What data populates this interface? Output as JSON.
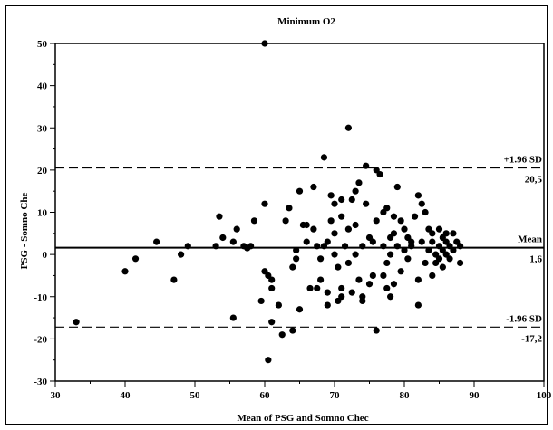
{
  "chart_data": {
    "type": "scatter",
    "title": "Minimum O2",
    "xlabel": "Mean of PSG and Somno Chec",
    "ylabel": "PSG - Somno Che",
    "xlim": [
      30,
      100
    ],
    "ylim": [
      -30,
      50
    ],
    "x_ticks": [
      "30",
      "40",
      "50",
      "60",
      "70",
      "80",
      "90",
      "100"
    ],
    "y_ticks": [
      "-30",
      "-20",
      "-10",
      "0",
      "10",
      "20",
      "30",
      "40",
      "50"
    ],
    "grid": false,
    "reference_lines": [
      {
        "name": "upper_loa",
        "value": 20.5,
        "style": "dashed",
        "label_top": "+1.96 SD",
        "label_bottom": "20,5"
      },
      {
        "name": "mean",
        "value": 1.6,
        "style": "solid",
        "label_top": "Mean",
        "label_bottom": "1,6"
      },
      {
        "name": "lower_loa",
        "value": -17.2,
        "style": "dashed",
        "label_top": "-1.96 SD",
        "label_bottom": "-17,2"
      }
    ],
    "points": [
      [
        33,
        -16
      ],
      [
        40,
        -4
      ],
      [
        41.5,
        -1
      ],
      [
        44.5,
        3
      ],
      [
        47,
        -6
      ],
      [
        48,
        0
      ],
      [
        49,
        2
      ],
      [
        53,
        2
      ],
      [
        53.5,
        9
      ],
      [
        54,
        4
      ],
      [
        55.5,
        -15
      ],
      [
        55.5,
        3
      ],
      [
        56,
        6
      ],
      [
        57,
        2
      ],
      [
        57.5,
        1.5
      ],
      [
        58,
        2
      ],
      [
        58.5,
        8
      ],
      [
        59.5,
        -11
      ],
      [
        60,
        12
      ],
      [
        60,
        50
      ],
      [
        60,
        -4
      ],
      [
        60.5,
        -5
      ],
      [
        60.5,
        -25
      ],
      [
        61,
        -8
      ],
      [
        61,
        -6
      ],
      [
        61,
        -16
      ],
      [
        62,
        -12
      ],
      [
        62.5,
        -19
      ],
      [
        63,
        8
      ],
      [
        63.5,
        11
      ],
      [
        64,
        -3
      ],
      [
        64,
        -18
      ],
      [
        64.5,
        -1
      ],
      [
        64.5,
        1
      ],
      [
        65,
        15
      ],
      [
        65,
        -13
      ],
      [
        65.5,
        7
      ],
      [
        66,
        3
      ],
      [
        66,
        7
      ],
      [
        66.5,
        -8
      ],
      [
        67,
        6
      ],
      [
        67,
        16
      ],
      [
        67.5,
        -8
      ],
      [
        67.5,
        2
      ],
      [
        68,
        -1
      ],
      [
        68,
        -6
      ],
      [
        68.5,
        23
      ],
      [
        68.5,
        2
      ],
      [
        69,
        -9
      ],
      [
        69,
        -12
      ],
      [
        69,
        3
      ],
      [
        69.5,
        8
      ],
      [
        69.5,
        14
      ],
      [
        70,
        12
      ],
      [
        70,
        5
      ],
      [
        70,
        0
      ],
      [
        70.5,
        -3
      ],
      [
        70.5,
        -11
      ],
      [
        71,
        -10
      ],
      [
        71,
        -8
      ],
      [
        71,
        13
      ],
      [
        71,
        9
      ],
      [
        71.5,
        2
      ],
      [
        72,
        -2
      ],
      [
        72,
        30
      ],
      [
        72,
        6
      ],
      [
        72.5,
        13
      ],
      [
        72.5,
        -9
      ],
      [
        73,
        15
      ],
      [
        73,
        7
      ],
      [
        73,
        0
      ],
      [
        73.5,
        17
      ],
      [
        73.5,
        -6
      ],
      [
        74,
        -11
      ],
      [
        74,
        -10
      ],
      [
        74,
        2
      ],
      [
        74.5,
        12
      ],
      [
        74.5,
        21
      ],
      [
        75,
        4
      ],
      [
        75,
        -7
      ],
      [
        75.5,
        3
      ],
      [
        75.5,
        -5
      ],
      [
        76,
        -18
      ],
      [
        76,
        20
      ],
      [
        76,
        8
      ],
      [
        76.5,
        19
      ],
      [
        77,
        10
      ],
      [
        77,
        -5
      ],
      [
        77,
        2
      ],
      [
        77.5,
        11
      ],
      [
        77.5,
        -8
      ],
      [
        77.5,
        -2
      ],
      [
        78,
        -10
      ],
      [
        78,
        4
      ],
      [
        78,
        0
      ],
      [
        78.5,
        9
      ],
      [
        78.5,
        5
      ],
      [
        78.5,
        -7
      ],
      [
        79,
        16
      ],
      [
        79,
        2
      ],
      [
        79.5,
        -4
      ],
      [
        79.5,
        8
      ],
      [
        80,
        6
      ],
      [
        80,
        1
      ],
      [
        80.5,
        4
      ],
      [
        80.5,
        -1
      ],
      [
        81,
        3
      ],
      [
        81,
        2
      ],
      [
        81.5,
        9
      ],
      [
        82,
        14
      ],
      [
        82,
        -12
      ],
      [
        82,
        -6
      ],
      [
        82.5,
        12
      ],
      [
        82.5,
        3
      ],
      [
        83,
        -2
      ],
      [
        83,
        10
      ],
      [
        83.5,
        6
      ],
      [
        83.5,
        1
      ],
      [
        84,
        -5
      ],
      [
        84,
        3
      ],
      [
        84,
        5
      ],
      [
        84.5,
        0
      ],
      [
        84.5,
        -2
      ],
      [
        85,
        6
      ],
      [
        85,
        2
      ],
      [
        85,
        -1
      ],
      [
        85.5,
        4
      ],
      [
        85.5,
        1
      ],
      [
        85.5,
        -3
      ],
      [
        86,
        5
      ],
      [
        86,
        0
      ],
      [
        86,
        3
      ],
      [
        86.5,
        2
      ],
      [
        86.5,
        -1
      ],
      [
        87,
        5
      ],
      [
        87,
        1
      ],
      [
        87.5,
        3
      ],
      [
        88,
        -2
      ],
      [
        88,
        2
      ]
    ]
  }
}
